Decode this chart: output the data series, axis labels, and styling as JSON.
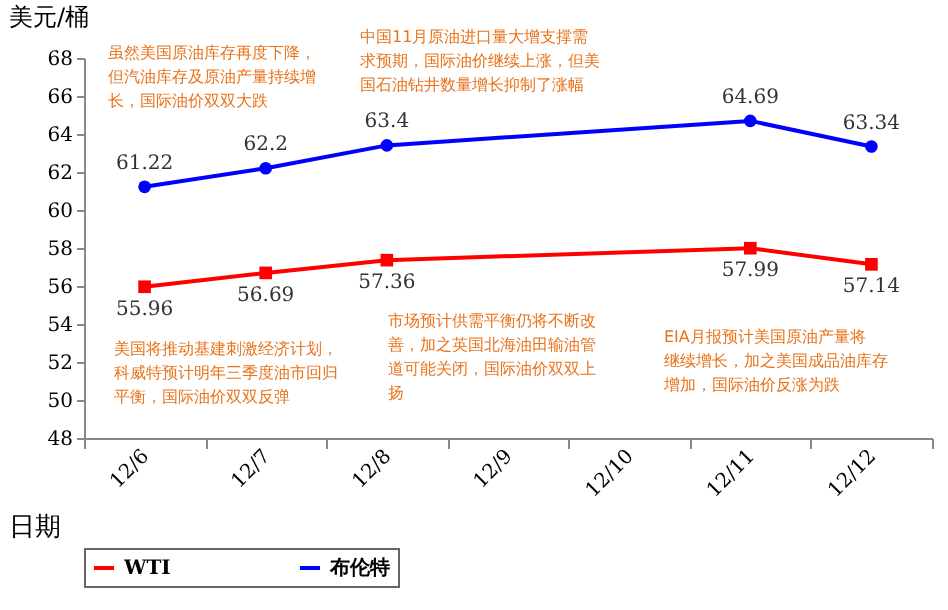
{
  "chart_data": {
    "type": "line",
    "xlabel": "日期",
    "ylabel": "美元/桶",
    "categories": [
      "12/6",
      "12/7",
      "12/8",
      "12/9",
      "12/10",
      "12/11",
      "12/12"
    ],
    "series": [
      {
        "name": "WTI",
        "color": "#ff0000",
        "marker": "square",
        "values": [
          55.96,
          56.69,
          57.36,
          null,
          null,
          57.99,
          57.14
        ]
      },
      {
        "name": "布伦特",
        "color": "#0000ff",
        "marker": "circle",
        "values": [
          61.22,
          62.2,
          63.4,
          null,
          null,
          64.69,
          63.34
        ]
      }
    ],
    "ylim": [
      48,
      68
    ],
    "yticks": [
      48,
      50,
      52,
      54,
      56,
      58,
      60,
      62,
      64,
      66,
      68
    ],
    "grid": false,
    "legend": "bottom",
    "data_labels": true,
    "line_style": "solid",
    "annotations": [
      "虽然美国原油库存再度下降，但汽油库存及原油产量持续增长，国际油价双双大跌",
      "中国11月原油进口量大增支撑需求预期，国际油价继续上涨，但美国石油钻井数量增长抑制了涨幅",
      "美国将推动基建刺激经济计划，科威特预计明年三季度油市回归平衡，国际油价双双反弹",
      "市场预计供需平衡仍将不断改善，加之英国北海油田输油管道可能关闭，国际油价双双上扬",
      "EIA月报预计美国原油产量将继续增长，加之美国成品油库存增加，国际油价反涨为跌"
    ]
  }
}
